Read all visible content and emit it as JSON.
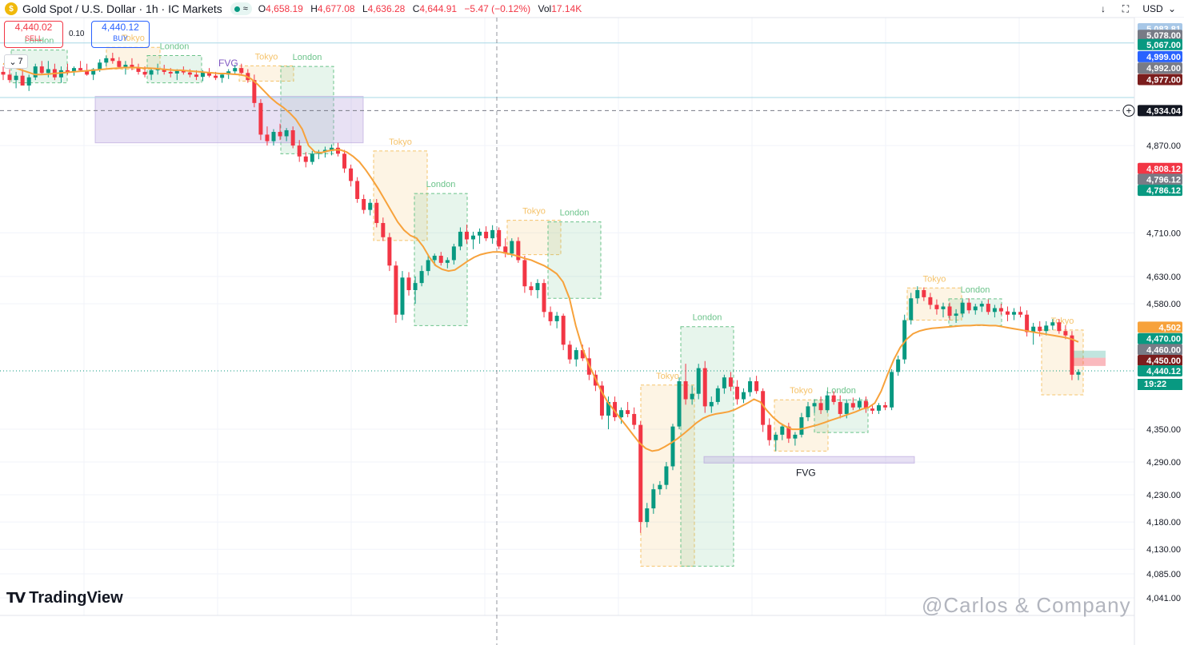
{
  "header": {
    "symbol": "Gold Spot / U.S. Dollar · 1h · IC Markets",
    "pill_glyph": "≈",
    "ohlc": {
      "o_label": "O",
      "o": "4,658.19",
      "h_label": "H",
      "h": "4,677.08",
      "l_label": "L",
      "l": "4,636.28",
      "c_label": "C",
      "c": "4,644.91",
      "chg": "−5.47 (−0.12%)",
      "vol_label": "Vol",
      "vol": "17.14K"
    },
    "currency": "USD"
  },
  "trade": {
    "sell_price": "4,440.02",
    "sell_label": "SELL",
    "spread": "0.10",
    "buy_price": "4,440.12",
    "buy_label": "BUY",
    "collapse_count": "7"
  },
  "branding": {
    "logo_text": "TradingView",
    "watermark": "@Carlos & Company"
  },
  "colors": {
    "up": "#089981",
    "down": "#f23645",
    "ma": "#f7a23b",
    "tokyo": "#f5c36b",
    "london": "#6bc38a",
    "fvg": "#b39ddb"
  },
  "chart_data": {
    "type": "candlestick",
    "symbol": "Gold Spot / U.S. Dollar",
    "interval": "1h",
    "ylim": [
      4020,
      5100
    ],
    "y_ticks": [
      "4,870.00",
      "4,710.00",
      "4,630.00",
      "4,580.00",
      "4,350.00",
      "4,290.00",
      "4,230.00",
      "4,180.00",
      "4,130.00",
      "4,085.00",
      "4,041.00"
    ],
    "price_labels": [
      {
        "text": "5,083.81",
        "color": "#a7c7e7",
        "price": 5084
      },
      {
        "text": "5,078.00",
        "color": "#787b86",
        "price": 5072
      },
      {
        "text": "5,067.00",
        "color": "#089981",
        "price": 5055
      },
      {
        "text": "4,999.00",
        "color": "#2962ff",
        "price": 5033
      },
      {
        "text": "4,992.00",
        "color": "#787b86",
        "price": 5012
      },
      {
        "text": "4,977.00",
        "color": "#7b1d1d",
        "price": 4991
      },
      {
        "text": "4,934.04",
        "color": "#131722",
        "price": 4934
      },
      {
        "text": "4,808.12",
        "color": "#f23645",
        "price": 4828
      },
      {
        "text": "4,796.12",
        "color": "#787b86",
        "price": 4808
      },
      {
        "text": "4,786.12",
        "color": "#089981",
        "price": 4788
      },
      {
        "text": "4,502",
        "color": "#f7a23b",
        "price": 4537
      },
      {
        "text": "4,470.00",
        "color": "#089981",
        "price": 4516
      },
      {
        "text": "4,460.00",
        "color": "#787b86",
        "price": 4496
      },
      {
        "text": "4,450.00",
        "color": "#7b1d1d",
        "price": 4476
      },
      {
        "text": "4,440.12",
        "color": "#089981",
        "price": 4457
      }
    ],
    "timer": "19:22",
    "current_price": 4457,
    "dashed_level": 4934,
    "sessions": [
      {
        "name": "London",
        "x0": 14,
        "x1": 84,
        "hi": 5045,
        "lo": 4985
      },
      {
        "name": "Tokyo",
        "x0": 133,
        "x1": 200,
        "hi": 5050,
        "lo": 5010
      },
      {
        "name": "London",
        "x0": 184,
        "x1": 252,
        "hi": 5035,
        "lo": 4985
      },
      {
        "name": "Tokyo",
        "x0": 299,
        "x1": 367,
        "hi": 5016,
        "lo": 4988
      },
      {
        "name": "London",
        "x0": 351,
        "x1": 417,
        "hi": 5015,
        "lo": 4855
      },
      {
        "name": "Tokyo",
        "x0": 467,
        "x1": 534,
        "hi": 4860,
        "lo": 4696
      },
      {
        "name": "London",
        "x0": 518,
        "x1": 584,
        "hi": 4782,
        "lo": 4540
      },
      {
        "name": "Tokyo",
        "x0": 634,
        "x1": 701,
        "hi": 4733,
        "lo": 4670
      },
      {
        "name": "London",
        "x0": 685,
        "x1": 751,
        "hi": 4730,
        "lo": 4590
      },
      {
        "name": "Tokyo",
        "x0": 801,
        "x1": 868,
        "hi": 4431,
        "lo": 4099
      },
      {
        "name": "London",
        "x0": 851,
        "x1": 917,
        "hi": 4538,
        "lo": 4099
      },
      {
        "name": "Tokyo",
        "x0": 968,
        "x1": 1035,
        "hi": 4404,
        "lo": 4310
      },
      {
        "name": "London",
        "x0": 1018,
        "x1": 1085,
        "hi": 4404,
        "lo": 4344
      },
      {
        "name": "Tokyo",
        "x0": 1134,
        "x1": 1202,
        "hi": 4609,
        "lo": 4550
      },
      {
        "name": "London",
        "x0": 1186,
        "x1": 1252,
        "hi": 4589,
        "lo": 4540
      },
      {
        "name": "Tokyo",
        "x0": 1302,
        "x1": 1354,
        "hi": 4532,
        "lo": 4413
      }
    ],
    "fvg_zones": [
      {
        "label": "FVG",
        "x0": 119,
        "x1": 454,
        "hi": 4960,
        "lo": 4875
      },
      {
        "label": "FVG",
        "x0": 880,
        "x1": 1143,
        "hi": 4300,
        "lo": 4288
      }
    ],
    "candles": [
      [
        5005,
        5015,
        4990,
        5000
      ],
      [
        5000,
        5010,
        4985,
        4990
      ],
      [
        4990,
        5005,
        4975,
        4998
      ],
      [
        4998,
        5010,
        4985,
        4980
      ],
      [
        4980,
        5000,
        4970,
        4995
      ],
      [
        4995,
        5020,
        4990,
        5015
      ],
      [
        5015,
        5025,
        5000,
        5003
      ],
      [
        5003,
        5025,
        4995,
        5010
      ],
      [
        5010,
        5020,
        4990,
        4995
      ],
      [
        4995,
        5015,
        4985,
        5008
      ],
      [
        5008,
        5020,
        5000,
        5005
      ],
      [
        5005,
        5015,
        4998,
        5012
      ],
      [
        5012,
        5025,
        5005,
        5008
      ],
      [
        5008,
        5020,
        4998,
        5000
      ],
      [
        5000,
        5012,
        4990,
        5010
      ],
      [
        5010,
        5028,
        5005,
        5022
      ],
      [
        5022,
        5035,
        5015,
        5030
      ],
      [
        5030,
        5040,
        5020,
        5025
      ],
      [
        5025,
        5032,
        5010,
        5014
      ],
      [
        5014,
        5025,
        5000,
        5018
      ],
      [
        5018,
        5030,
        5008,
        5012
      ],
      [
        5012,
        5020,
        5000,
        5005
      ],
      [
        5005,
        5015,
        4995,
        5000
      ],
      [
        5000,
        5012,
        4990,
        5008
      ],
      [
        5008,
        5020,
        5000,
        5010
      ],
      [
        5010,
        5018,
        5000,
        5005
      ],
      [
        5005,
        5012,
        4995,
        5002
      ],
      [
        5002,
        5010,
        4990,
        5008
      ],
      [
        5008,
        5015,
        5000,
        5004
      ],
      [
        5004,
        5010,
        4995,
        5000
      ],
      [
        5000,
        5008,
        4990,
        4996
      ],
      [
        4996,
        5008,
        4988,
        5004
      ],
      [
        5004,
        5012,
        4995,
        4998
      ],
      [
        4998,
        5005,
        4990,
        4994
      ],
      [
        4994,
        5002,
        4985,
        5000
      ],
      [
        5000,
        5010,
        4992,
        5006
      ],
      [
        5006,
        5018,
        5000,
        5012
      ],
      [
        5012,
        5020,
        5000,
        5003
      ],
      [
        5003,
        5010,
        4985,
        4990
      ],
      [
        4990,
        5000,
        4940,
        4948
      ],
      [
        4948,
        4955,
        4880,
        4890
      ],
      [
        4890,
        4905,
        4870,
        4878
      ],
      [
        4878,
        4900,
        4870,
        4895
      ],
      [
        4895,
        4910,
        4880,
        4887
      ],
      [
        4887,
        4902,
        4878,
        4898
      ],
      [
        4898,
        4905,
        4865,
        4870
      ],
      [
        4870,
        4880,
        4840,
        4850
      ],
      [
        4850,
        4858,
        4830,
        4840
      ],
      [
        4840,
        4860,
        4835,
        4855
      ],
      [
        4855,
        4862,
        4845,
        4858
      ],
      [
        4858,
        4868,
        4848,
        4862
      ],
      [
        4862,
        4872,
        4852,
        4866
      ],
      [
        4866,
        4875,
        4850,
        4855
      ],
      [
        4855,
        4862,
        4820,
        4828
      ],
      [
        4828,
        4835,
        4795,
        4805
      ],
      [
        4805,
        4812,
        4765,
        4772
      ],
      [
        4772,
        4780,
        4745,
        4752
      ],
      [
        4752,
        4772,
        4742,
        4765
      ],
      [
        4765,
        4772,
        4720,
        4728
      ],
      [
        4728,
        4738,
        4695,
        4702
      ],
      [
        4702,
        4710,
        4640,
        4650
      ],
      [
        4650,
        4658,
        4545,
        4560
      ],
      [
        4560,
        4640,
        4550,
        4628
      ],
      [
        4628,
        4638,
        4595,
        4605
      ],
      [
        4605,
        4630,
        4580,
        4618
      ],
      [
        4618,
        4650,
        4612,
        4640
      ],
      [
        4640,
        4668,
        4632,
        4660
      ],
      [
        4660,
        4672,
        4650,
        4668
      ],
      [
        4668,
        4675,
        4650,
        4655
      ],
      [
        4655,
        4665,
        4645,
        4660
      ],
      [
        4660,
        4690,
        4652,
        4685
      ],
      [
        4685,
        4720,
        4678,
        4712
      ],
      [
        4712,
        4725,
        4690,
        4698
      ],
      [
        4698,
        4712,
        4680,
        4705
      ],
      [
        4705,
        4718,
        4690,
        4712
      ],
      [
        4712,
        4722,
        4695,
        4700
      ],
      [
        4700,
        4724,
        4690,
        4715
      ],
      [
        4715,
        4720,
        4680,
        4685
      ],
      [
        4685,
        4700,
        4665,
        4672
      ],
      [
        4672,
        4700,
        4665,
        4695
      ],
      [
        4695,
        4702,
        4655,
        4660
      ],
      [
        4660,
        4668,
        4600,
        4612
      ],
      [
        4612,
        4620,
        4595,
        4605
      ],
      [
        4605,
        4625,
        4590,
        4618
      ],
      [
        4618,
        4625,
        4555,
        4565
      ],
      [
        4565,
        4575,
        4540,
        4548
      ],
      [
        4548,
        4565,
        4535,
        4558
      ],
      [
        4558,
        4562,
        4495,
        4505
      ],
      [
        4505,
        4512,
        4470,
        4478
      ],
      [
        4478,
        4500,
        4465,
        4495
      ],
      [
        4495,
        4505,
        4475,
        4480
      ],
      [
        4480,
        4500,
        4440,
        4450
      ],
      [
        4450,
        4458,
        4420,
        4430
      ],
      [
        4430,
        4438,
        4368,
        4375
      ],
      [
        4375,
        4410,
        4350,
        4400
      ],
      [
        4400,
        4410,
        4365,
        4372
      ],
      [
        4372,
        4390,
        4360,
        4385
      ],
      [
        4385,
        4400,
        4372,
        4378
      ],
      [
        4378,
        4390,
        4350,
        4358
      ],
      [
        4358,
        4365,
        4160,
        4180
      ],
      [
        4180,
        4215,
        4170,
        4205
      ],
      [
        4205,
        4250,
        4195,
        4240
      ],
      [
        4240,
        4255,
        4230,
        4248
      ],
      [
        4248,
        4290,
        4240,
        4282
      ],
      [
        4282,
        4360,
        4275,
        4355
      ],
      [
        4355,
        4445,
        4350,
        4438
      ],
      [
        4438,
        4470,
        4395,
        4405
      ],
      [
        4405,
        4430,
        4395,
        4415
      ],
      [
        4415,
        4470,
        4405,
        4462
      ],
      [
        4462,
        4475,
        4380,
        4392
      ],
      [
        4392,
        4410,
        4380,
        4400
      ],
      [
        4400,
        4430,
        4395,
        4425
      ],
      [
        4425,
        4450,
        4415,
        4445
      ],
      [
        4445,
        4455,
        4420,
        4428
      ],
      [
        4428,
        4440,
        4395,
        4405
      ],
      [
        4405,
        4425,
        4398,
        4418
      ],
      [
        4418,
        4445,
        4410,
        4438
      ],
      [
        4438,
        4448,
        4415,
        4420
      ],
      [
        4420,
        4425,
        4345,
        4358
      ],
      [
        4358,
        4370,
        4320,
        4330
      ],
      [
        4330,
        4345,
        4310,
        4340
      ],
      [
        4340,
        4360,
        4330,
        4355
      ],
      [
        4355,
        4362,
        4325,
        4333
      ],
      [
        4333,
        4345,
        4320,
        4340
      ],
      [
        4340,
        4380,
        4335,
        4372
      ],
      [
        4372,
        4400,
        4365,
        4392
      ],
      [
        4392,
        4405,
        4380,
        4398
      ],
      [
        4398,
        4410,
        4378,
        4385
      ],
      [
        4385,
        4420,
        4380,
        4412
      ],
      [
        4412,
        4420,
        4395,
        4400
      ],
      [
        4400,
        4412,
        4370,
        4378
      ],
      [
        4378,
        4405,
        4370,
        4398
      ],
      [
        4398,
        4408,
        4385,
        4390
      ],
      [
        4390,
        4408,
        4385,
        4402
      ],
      [
        4402,
        4410,
        4380,
        4388
      ],
      [
        4388,
        4395,
        4378,
        4384
      ],
      [
        4384,
        4398,
        4378,
        4394
      ],
      [
        4394,
        4400,
        4385,
        4390
      ],
      [
        4390,
        4460,
        4385,
        4455
      ],
      [
        4455,
        4485,
        4448,
        4478
      ],
      [
        4478,
        4560,
        4470,
        4550
      ],
      [
        4550,
        4600,
        4542,
        4590
      ],
      [
        4590,
        4612,
        4580,
        4605
      ],
      [
        4605,
        4610,
        4585,
        4592
      ],
      [
        4592,
        4600,
        4570,
        4578
      ],
      [
        4578,
        4588,
        4560,
        4570
      ],
      [
        4570,
        4582,
        4555,
        4575
      ],
      [
        4575,
        4582,
        4550,
        4558
      ],
      [
        4558,
        4570,
        4545,
        4562
      ],
      [
        4562,
        4588,
        4555,
        4582
      ],
      [
        4582,
        4590,
        4562,
        4568
      ],
      [
        4568,
        4580,
        4560,
        4575
      ],
      [
        4575,
        4585,
        4565,
        4580
      ],
      [
        4580,
        4588,
        4560,
        4565
      ],
      [
        4565,
        4578,
        4555,
        4572
      ],
      [
        4572,
        4580,
        4560,
        4566
      ],
      [
        4566,
        4575,
        4548,
        4560
      ],
      [
        4560,
        4572,
        4550,
        4565
      ],
      [
        4565,
        4575,
        4555,
        4560
      ],
      [
        4560,
        4568,
        4520,
        4528
      ],
      [
        4528,
        4545,
        4505,
        4538
      ],
      [
        4538,
        4548,
        4520,
        4530
      ],
      [
        4530,
        4548,
        4522,
        4540
      ],
      [
        4540,
        4552,
        4532,
        4546
      ],
      [
        4546,
        4552,
        4525,
        4530
      ],
      [
        4530,
        4540,
        4515,
        4522
      ],
      [
        4522,
        4530,
        4440,
        4450
      ],
      [
        4450,
        4460,
        4440,
        4455
      ]
    ],
    "ma_values": [
      5020,
      5016,
      5012,
      5008,
      5004,
      5000,
      5000,
      5001,
      5002,
      5003,
      5004,
      5005,
      5006,
      5007,
      5008,
      5009,
      5010,
      5011,
      5012,
      5013,
      5013,
      5013,
      5012,
      5012,
      5011,
      5010,
      5009,
      5008,
      5008,
      5007,
      5006,
      5005,
      5004,
      5003,
      5002,
      5002,
      5001,
      5000,
      4998,
      4992,
      4982,
      4970,
      4958,
      4948,
      4940,
      4930,
      4918,
      4900,
      4870,
      4858,
      4857,
      4860,
      4862,
      4862,
      4858,
      4850,
      4840,
      4825,
      4808,
      4790,
      4770,
      4750,
      4730,
      4715,
      4705,
      4700,
      4685,
      4665,
      4650,
      4643,
      4640,
      4642,
      4650,
      4658,
      4665,
      4670,
      4673,
      4675,
      4675,
      4673,
      4670,
      4667,
      4663,
      4660,
      4655,
      4650,
      4643,
      4635,
      4620,
      4590,
      4540,
      4500,
      4470,
      4445,
      4420,
      4400,
      4385,
      4370,
      4355,
      4340,
      4325,
      4315,
      4310,
      4312,
      4318,
      4325,
      4333,
      4342,
      4352,
      4362,
      4370,
      4375,
      4378,
      4380,
      4382,
      4386,
      4392,
      4398,
      4405,
      4400,
      4385,
      4372,
      4362,
      4355,
      4350,
      4350,
      4352,
      4355,
      4358,
      4362,
      4366,
      4370,
      4374,
      4378,
      4382,
      4387,
      4390,
      4398,
      4420,
      4450,
      4478,
      4500,
      4515,
      4525,
      4530,
      4533,
      4535,
      4536,
      4537,
      4538,
      4539,
      4540,
      4540,
      4541,
      4541,
      4540,
      4540,
      4538,
      4536,
      4534,
      4532,
      4530,
      4528,
      4526,
      4524,
      4522,
      4520,
      4518,
      4515,
      4510
    ]
  }
}
